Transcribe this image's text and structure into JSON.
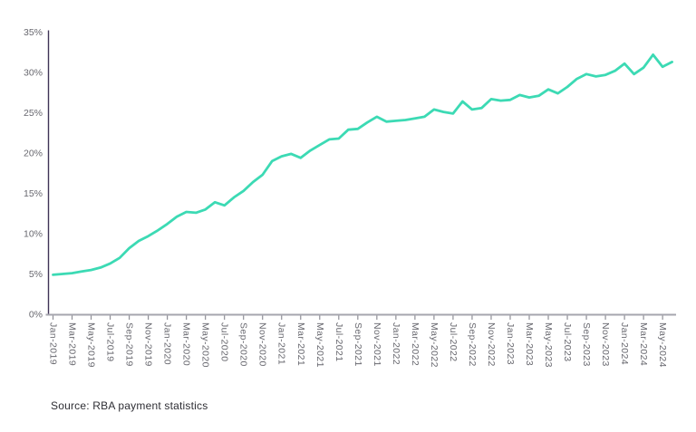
{
  "chart_data": {
    "type": "line",
    "title": "",
    "xlabel": "",
    "ylabel": "",
    "ylim": [
      0,
      35
    ],
    "grid": "off",
    "legend": "none",
    "x_monthly": [
      "Jan-2019",
      "Feb-2019",
      "Mar-2019",
      "Apr-2019",
      "May-2019",
      "Jun-2019",
      "Jul-2019",
      "Aug-2019",
      "Sep-2019",
      "Oct-2019",
      "Nov-2019",
      "Dec-2019",
      "Jan-2020",
      "Feb-2020",
      "Mar-2020",
      "Apr-2020",
      "May-2020",
      "Jun-2020",
      "Jul-2020",
      "Aug-2020",
      "Sep-2020",
      "Oct-2020",
      "Nov-2020",
      "Dec-2020",
      "Jan-2021",
      "Feb-2021",
      "Mar-2021",
      "Apr-2021",
      "May-2021",
      "Jun-2021",
      "Jul-2021",
      "Aug-2021",
      "Sep-2021",
      "Oct-2021",
      "Nov-2021",
      "Dec-2021",
      "Jan-2022",
      "Feb-2022",
      "Mar-2022",
      "Apr-2022",
      "May-2022",
      "Jun-2022",
      "Jul-2022",
      "Aug-2022",
      "Sep-2022",
      "Oct-2022",
      "Nov-2022",
      "Dec-2022",
      "Jan-2023",
      "Feb-2023",
      "Mar-2023",
      "Apr-2023",
      "May-2023",
      "Jun-2023",
      "Jul-2023",
      "Aug-2023",
      "Sep-2023",
      "Oct-2023",
      "Nov-2023",
      "Dec-2023",
      "Jan-2024",
      "Feb-2024",
      "Mar-2024",
      "Apr-2024",
      "May-2024",
      "Jun-2024"
    ],
    "values": [
      4.9,
      5.0,
      5.1,
      5.3,
      5.5,
      5.8,
      6.3,
      7.0,
      8.2,
      9.1,
      9.7,
      10.4,
      11.2,
      12.1,
      12.7,
      12.6,
      13.0,
      13.9,
      13.5,
      14.5,
      15.3,
      16.4,
      17.3,
      19.0,
      19.6,
      19.9,
      19.4,
      20.3,
      21.0,
      21.7,
      21.8,
      22.9,
      23.0,
      23.8,
      24.5,
      23.9,
      24.0,
      24.1,
      24.3,
      24.5,
      25.4,
      25.1,
      24.9,
      26.4,
      25.4,
      25.6,
      26.7,
      26.5,
      26.6,
      27.2,
      26.9,
      27.1,
      27.9,
      27.4,
      28.2,
      29.2,
      29.8,
      29.5,
      29.7,
      30.2,
      31.1,
      29.8,
      30.6,
      32.2,
      30.7,
      31.3
    ],
    "x_tick_labels": [
      "Jan-2019",
      "Mar-2019",
      "May-2019",
      "Jul-2019",
      "Sep-2019",
      "Nov-2019",
      "Jan-2020",
      "Mar-2020",
      "May-2020",
      "Jul-2020",
      "Sep-2020",
      "Nov-2020",
      "Jan-2021",
      "Mar-2021",
      "May-2021",
      "Jul-2021",
      "Sep-2021",
      "Nov-2021",
      "Jan-2022",
      "Mar-2022",
      "May-2022",
      "Jul-2022",
      "Sep-2022",
      "Nov-2022",
      "Jan-2023",
      "Mar-2023",
      "May-2023",
      "Jul-2023",
      "Sep-2023",
      "Nov-2023",
      "Jan-2024",
      "Mar-2024",
      "May-2024"
    ],
    "x_tick_every_months": 2,
    "y_tick_labels": [
      "0%",
      "5%",
      "10%",
      "15%",
      "20%",
      "25%",
      "30%",
      "35%"
    ],
    "y_tick_values": [
      0,
      5,
      10,
      15,
      20,
      25,
      30,
      35
    ],
    "colors": {
      "line": "#3cdab4",
      "y_axis": "#3e3356",
      "x_axis": "#a6a6ae",
      "tick": "#8f8f97",
      "label": "#68686f"
    }
  },
  "footer": {
    "source": "Source: RBA payment statistics"
  }
}
